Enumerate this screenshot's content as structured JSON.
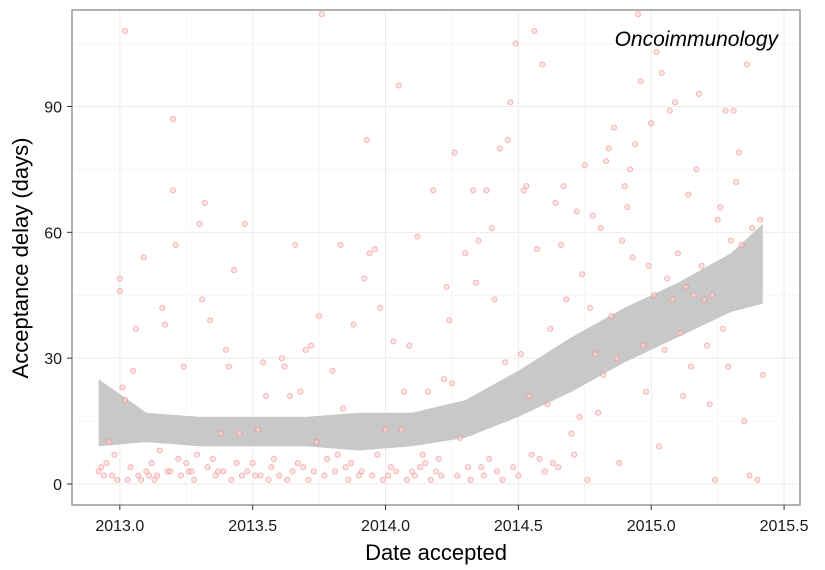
{
  "chart_data": {
    "type": "scatter",
    "title": "",
    "xlabel": "Date accepted",
    "ylabel": "Acceptance delay (days)",
    "annotation": "Oncoimmunology",
    "xlim": [
      2012.82,
      2015.56
    ],
    "ylim": [
      -5,
      113
    ],
    "x_ticks": [
      2013.0,
      2013.5,
      2014.0,
      2014.5,
      2015.0,
      2015.5
    ],
    "x_tick_labels": [
      "2013.0",
      "2013.5",
      "2014.0",
      "2014.5",
      "2015.0",
      "2015.5"
    ],
    "y_ticks": [
      0,
      30,
      60,
      90
    ],
    "y_tick_labels": [
      "0",
      "30",
      "60",
      "90"
    ],
    "grid": true,
    "colors": {
      "points": "#f08080",
      "points_fill": "#fbd5d5",
      "band": "#c8c8c8",
      "frame": "#7f7f7f",
      "grid": "#ebebeb"
    },
    "smooth_band": {
      "x": [
        2012.92,
        2013.1,
        2013.3,
        2013.5,
        2013.7,
        2013.9,
        2014.1,
        2014.3,
        2014.5,
        2014.7,
        2014.9,
        2015.1,
        2015.3,
        2015.42
      ],
      "lower": [
        9,
        10,
        9,
        9,
        9,
        8,
        9,
        11,
        16,
        22,
        29,
        35,
        41,
        43
      ],
      "upper": [
        25,
        17,
        16,
        16,
        16,
        17,
        17,
        20,
        27,
        35,
        42,
        48,
        55,
        62
      ]
    },
    "points": [
      [
        2012.92,
        3
      ],
      [
        2012.93,
        4
      ],
      [
        2012.94,
        2
      ],
      [
        2012.95,
        5
      ],
      [
        2012.96,
        10
      ],
      [
        2012.97,
        2
      ],
      [
        2012.98,
        7
      ],
      [
        2012.99,
        1
      ],
      [
        2013.0,
        49
      ],
      [
        2013.0,
        46
      ],
      [
        2013.01,
        23
      ],
      [
        2013.02,
        108
      ],
      [
        2013.02,
        20
      ],
      [
        2013.03,
        1
      ],
      [
        2013.04,
        4
      ],
      [
        2013.05,
        27
      ],
      [
        2013.06,
        37
      ],
      [
        2013.07,
        2
      ],
      [
        2013.08,
        1
      ],
      [
        2013.09,
        54
      ],
      [
        2013.1,
        3
      ],
      [
        2013.11,
        2
      ],
      [
        2013.12,
        5
      ],
      [
        2013.13,
        1
      ],
      [
        2013.14,
        2
      ],
      [
        2013.15,
        8
      ],
      [
        2013.16,
        42
      ],
      [
        2013.17,
        38
      ],
      [
        2013.18,
        3
      ],
      [
        2013.19,
        3
      ],
      [
        2013.2,
        87
      ],
      [
        2013.2,
        70
      ],
      [
        2013.21,
        57
      ],
      [
        2013.22,
        6
      ],
      [
        2013.23,
        2
      ],
      [
        2013.24,
        28
      ],
      [
        2013.25,
        5
      ],
      [
        2013.26,
        3
      ],
      [
        2013.27,
        3
      ],
      [
        2013.28,
        1
      ],
      [
        2013.29,
        7
      ],
      [
        2013.3,
        62
      ],
      [
        2013.31,
        44
      ],
      [
        2013.32,
        67
      ],
      [
        2013.33,
        4
      ],
      [
        2013.34,
        39
      ],
      [
        2013.35,
        6
      ],
      [
        2013.36,
        2
      ],
      [
        2013.37,
        3
      ],
      [
        2013.38,
        12
      ],
      [
        2013.39,
        3
      ],
      [
        2013.4,
        32
      ],
      [
        2013.41,
        28
      ],
      [
        2013.42,
        1
      ],
      [
        2013.43,
        51
      ],
      [
        2013.44,
        5
      ],
      [
        2013.45,
        12
      ],
      [
        2013.46,
        2
      ],
      [
        2013.47,
        62
      ],
      [
        2013.48,
        3
      ],
      [
        2013.5,
        5
      ],
      [
        2013.51,
        2
      ],
      [
        2013.52,
        13
      ],
      [
        2013.53,
        2
      ],
      [
        2013.54,
        29
      ],
      [
        2013.55,
        21
      ],
      [
        2013.56,
        1
      ],
      [
        2013.57,
        4
      ],
      [
        2013.58,
        6
      ],
      [
        2013.6,
        2
      ],
      [
        2013.61,
        30
      ],
      [
        2013.62,
        28
      ],
      [
        2013.63,
        1
      ],
      [
        2013.64,
        21
      ],
      [
        2013.65,
        3
      ],
      [
        2013.66,
        57
      ],
      [
        2013.67,
        5
      ],
      [
        2013.68,
        22
      ],
      [
        2013.69,
        4
      ],
      [
        2013.7,
        32
      ],
      [
        2013.71,
        1
      ],
      [
        2013.72,
        33
      ],
      [
        2013.73,
        3
      ],
      [
        2013.74,
        10
      ],
      [
        2013.75,
        40
      ],
      [
        2013.76,
        112
      ],
      [
        2013.77,
        2
      ],
      [
        2013.78,
        6
      ],
      [
        2013.8,
        27
      ],
      [
        2013.81,
        3
      ],
      [
        2013.82,
        7
      ],
      [
        2013.83,
        57
      ],
      [
        2013.84,
        18
      ],
      [
        2013.85,
        4
      ],
      [
        2013.86,
        1
      ],
      [
        2013.87,
        5
      ],
      [
        2013.88,
        38
      ],
      [
        2013.9,
        2
      ],
      [
        2013.91,
        3
      ],
      [
        2013.92,
        49
      ],
      [
        2013.93,
        82
      ],
      [
        2013.94,
        55
      ],
      [
        2013.95,
        2
      ],
      [
        2013.96,
        56
      ],
      [
        2013.97,
        7
      ],
      [
        2013.98,
        42
      ],
      [
        2013.99,
        1
      ],
      [
        2014.0,
        13
      ],
      [
        2014.01,
        2
      ],
      [
        2014.02,
        4
      ],
      [
        2014.03,
        34
      ],
      [
        2014.04,
        3
      ],
      [
        2014.05,
        95
      ],
      [
        2014.06,
        13
      ],
      [
        2014.07,
        22
      ],
      [
        2014.08,
        1
      ],
      [
        2014.09,
        33
      ],
      [
        2014.1,
        3
      ],
      [
        2014.11,
        2
      ],
      [
        2014.12,
        59
      ],
      [
        2014.13,
        4
      ],
      [
        2014.14,
        7
      ],
      [
        2014.15,
        5
      ],
      [
        2014.16,
        22
      ],
      [
        2014.17,
        1
      ],
      [
        2014.18,
        70
      ],
      [
        2014.19,
        3
      ],
      [
        2014.2,
        6
      ],
      [
        2014.21,
        2
      ],
      [
        2014.22,
        25
      ],
      [
        2014.23,
        47
      ],
      [
        2014.24,
        39
      ],
      [
        2014.25,
        24
      ],
      [
        2014.26,
        79
      ],
      [
        2014.27,
        2
      ],
      [
        2014.28,
        11
      ],
      [
        2014.3,
        55
      ],
      [
        2014.31,
        4
      ],
      [
        2014.32,
        1
      ],
      [
        2014.33,
        70
      ],
      [
        2014.34,
        48
      ],
      [
        2014.35,
        58
      ],
      [
        2014.36,
        4
      ],
      [
        2014.37,
        2
      ],
      [
        2014.38,
        70
      ],
      [
        2014.39,
        6
      ],
      [
        2014.4,
        61
      ],
      [
        2014.41,
        44
      ],
      [
        2014.42,
        3
      ],
      [
        2014.43,
        80
      ],
      [
        2014.44,
        1
      ],
      [
        2014.45,
        29
      ],
      [
        2014.46,
        82
      ],
      [
        2014.47,
        91
      ],
      [
        2014.48,
        4
      ],
      [
        2014.49,
        105
      ],
      [
        2014.5,
        2
      ],
      [
        2014.51,
        31
      ],
      [
        2014.52,
        70
      ],
      [
        2014.53,
        71
      ],
      [
        2014.54,
        21
      ],
      [
        2014.55,
        7
      ],
      [
        2014.56,
        108
      ],
      [
        2014.57,
        56
      ],
      [
        2014.58,
        6
      ],
      [
        2014.59,
        100
      ],
      [
        2014.6,
        3
      ],
      [
        2014.61,
        19
      ],
      [
        2014.62,
        37
      ],
      [
        2014.63,
        5
      ],
      [
        2014.64,
        67
      ],
      [
        2014.65,
        4
      ],
      [
        2014.66,
        57
      ],
      [
        2014.67,
        71
      ],
      [
        2014.68,
        44
      ],
      [
        2014.7,
        12
      ],
      [
        2014.71,
        7
      ],
      [
        2014.72,
        65
      ],
      [
        2014.73,
        16
      ],
      [
        2014.74,
        50
      ],
      [
        2014.75,
        76
      ],
      [
        2014.76,
        1
      ],
      [
        2014.77,
        42
      ],
      [
        2014.78,
        64
      ],
      [
        2014.79,
        31
      ],
      [
        2014.8,
        17
      ],
      [
        2014.81,
        61
      ],
      [
        2014.82,
        26
      ],
      [
        2014.83,
        77
      ],
      [
        2014.84,
        80
      ],
      [
        2014.85,
        40
      ],
      [
        2014.86,
        85
      ],
      [
        2014.87,
        30
      ],
      [
        2014.88,
        5
      ],
      [
        2014.89,
        58
      ],
      [
        2014.9,
        71
      ],
      [
        2014.91,
        66
      ],
      [
        2014.92,
        75
      ],
      [
        2014.93,
        54
      ],
      [
        2014.94,
        81
      ],
      [
        2014.95,
        112
      ],
      [
        2014.96,
        96
      ],
      [
        2014.97,
        33
      ],
      [
        2014.98,
        22
      ],
      [
        2014.99,
        52
      ],
      [
        2015.0,
        86
      ],
      [
        2015.01,
        45
      ],
      [
        2015.02,
        103
      ],
      [
        2015.03,
        9
      ],
      [
        2015.04,
        98
      ],
      [
        2015.05,
        32
      ],
      [
        2015.06,
        49
      ],
      [
        2015.07,
        89
      ],
      [
        2015.08,
        44
      ],
      [
        2015.09,
        91
      ],
      [
        2015.1,
        55
      ],
      [
        2015.11,
        36
      ],
      [
        2015.12,
        21
      ],
      [
        2015.13,
        47
      ],
      [
        2015.14,
        69
      ],
      [
        2015.15,
        28
      ],
      [
        2015.16,
        45
      ],
      [
        2015.17,
        75
      ],
      [
        2015.18,
        93
      ],
      [
        2015.19,
        52
      ],
      [
        2015.2,
        44
      ],
      [
        2015.21,
        33
      ],
      [
        2015.22,
        19
      ],
      [
        2015.23,
        45
      ],
      [
        2015.24,
        1
      ],
      [
        2015.25,
        63
      ],
      [
        2015.26,
        66
      ],
      [
        2015.27,
        37
      ],
      [
        2015.28,
        89
      ],
      [
        2015.29,
        28
      ],
      [
        2015.3,
        58
      ],
      [
        2015.31,
        89
      ],
      [
        2015.32,
        72
      ],
      [
        2015.33,
        79
      ],
      [
        2015.34,
        57
      ],
      [
        2015.35,
        15
      ],
      [
        2015.36,
        100
      ],
      [
        2015.37,
        2
      ],
      [
        2015.38,
        61
      ],
      [
        2015.4,
        1
      ],
      [
        2015.41,
        63
      ],
      [
        2015.42,
        26
      ]
    ]
  }
}
